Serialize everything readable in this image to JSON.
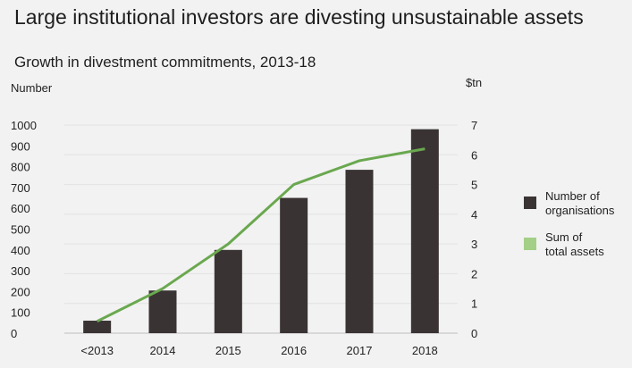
{
  "header": {
    "title": "Large institutional investors are divesting unsustainable assets"
  },
  "chart_data": {
    "type": "bar",
    "title": "Growth in divestment commitments, 2013-18",
    "ylabel": "Number",
    "y2label": "$tn",
    "categories": [
      "<2013",
      "2014",
      "2015",
      "2016",
      "2017",
      "2018"
    ],
    "ylim": [
      0,
      1000
    ],
    "y2lim": [
      0,
      7
    ],
    "yticks": [
      "0",
      "100",
      "200",
      "300",
      "400",
      "500",
      "600",
      "700",
      "800",
      "900",
      "1000"
    ],
    "y2ticks": [
      "0",
      "1",
      "2",
      "3",
      "4",
      "5",
      "6",
      "7"
    ],
    "series": [
      {
        "name": "Number of organisations",
        "type": "bar",
        "axis": "left",
        "color": "#3a3334",
        "values": [
          60,
          205,
          400,
          650,
          785,
          980
        ]
      },
      {
        "name": "Sum of total assets",
        "type": "line",
        "axis": "right",
        "color": "#6aa84f",
        "legend_color": "#a3cf86",
        "values": [
          0.4,
          1.5,
          3.0,
          5.0,
          5.8,
          6.2
        ]
      }
    ],
    "legend_position": "right"
  },
  "legend": {
    "bar_label_line1": "Number of",
    "bar_label_line2": "organisations",
    "line_label_line1": "Sum of",
    "line_label_line2": "total assets"
  }
}
